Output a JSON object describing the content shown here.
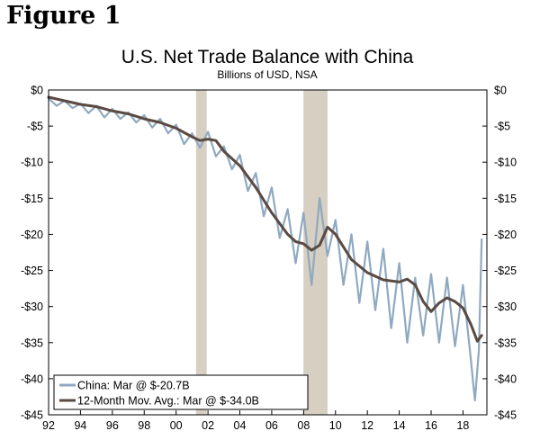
{
  "figure_label": "Figure 1",
  "chart_data": {
    "type": "line",
    "title": "U.S. Net Trade Balance with China",
    "subtitle": "Billions of USD, NSA",
    "xlabel": "",
    "ylabel": "",
    "xlim": [
      1992,
      2019.5
    ],
    "ylim": [
      -45,
      0
    ],
    "x_ticks": [
      1992,
      1994,
      1996,
      1998,
      2000,
      2002,
      2004,
      2006,
      2008,
      2010,
      2012,
      2014,
      2016,
      2018
    ],
    "x_tick_labels": [
      "92",
      "94",
      "96",
      "98",
      "00",
      "02",
      "04",
      "06",
      "08",
      "10",
      "12",
      "14",
      "16",
      "18"
    ],
    "y_ticks": [
      0,
      -5,
      -10,
      -15,
      -20,
      -25,
      -30,
      -35,
      -40,
      -45
    ],
    "y_tick_labels_left": [
      "$0",
      "-$5",
      "-$10",
      "-$15",
      "-$20",
      "-$25",
      "-$30",
      "-$35",
      "-$40",
      "-$45"
    ],
    "y_tick_labels_right": [
      "$0",
      "-$5",
      "-$10",
      "-$15",
      "-$20",
      "-$25",
      "-$30",
      "-$35",
      "-$40",
      "-$45"
    ],
    "recessions": [
      [
        2001.25,
        2001.92
      ],
      [
        2007.99,
        2009.5
      ]
    ],
    "legend_position": "bottom-left",
    "series": [
      {
        "name": "China: Mar @ $-20.7B",
        "color": "#8fa9c0",
        "x": [
          1992.0,
          1992.5,
          1993.0,
          1993.5,
          1994.0,
          1994.5,
          1995.0,
          1995.5,
          1996.0,
          1996.5,
          1997.0,
          1997.5,
          1998.0,
          1998.5,
          1999.0,
          1999.5,
          2000.0,
          2000.5,
          2001.0,
          2001.5,
          2002.0,
          2002.5,
          2003.0,
          2003.5,
          2004.0,
          2004.5,
          2005.0,
          2005.5,
          2006.0,
          2006.5,
          2007.0,
          2007.5,
          2008.0,
          2008.5,
          2009.0,
          2009.5,
          2010.0,
          2010.5,
          2011.0,
          2011.5,
          2012.0,
          2012.5,
          2013.0,
          2013.5,
          2014.0,
          2014.5,
          2015.0,
          2015.5,
          2016.0,
          2016.5,
          2017.0,
          2017.5,
          2018.0,
          2018.5,
          2018.75,
          2019.0,
          2019.17
        ],
        "values": [
          -1.2,
          -2.2,
          -1.5,
          -2.5,
          -1.9,
          -3.2,
          -2.2,
          -3.8,
          -2.6,
          -4.0,
          -3.1,
          -4.5,
          -3.5,
          -5.2,
          -4.0,
          -6.0,
          -4.8,
          -7.5,
          -6.0,
          -8.0,
          -5.8,
          -9.2,
          -7.8,
          -11.0,
          -9.0,
          -14.0,
          -11.5,
          -17.5,
          -13.5,
          -20.5,
          -16.5,
          -24.0,
          -17.0,
          -27.0,
          -15.0,
          -23.0,
          -18.0,
          -27.0,
          -20.0,
          -29.5,
          -21.0,
          -30.5,
          -22.0,
          -33.0,
          -24.0,
          -35.0,
          -26.0,
          -34.0,
          -25.5,
          -35.0,
          -26.0,
          -35.5,
          -27.0,
          -37.5,
          -43.0,
          -36.0,
          -20.7
        ]
      },
      {
        "name": "12-Month Mov. Avg.: Mar @ $-34.0B",
        "color": "#5a4a42",
        "x": [
          1992.0,
          1993.0,
          1994.0,
          1995.0,
          1996.0,
          1997.0,
          1998.0,
          1999.0,
          2000.0,
          2001.0,
          2001.5,
          2002.0,
          2002.5,
          2003.0,
          2004.0,
          2005.0,
          2006.0,
          2007.0,
          2007.5,
          2008.0,
          2008.5,
          2009.0,
          2009.5,
          2010.0,
          2011.0,
          2012.0,
          2013.0,
          2014.0,
          2014.5,
          2015.0,
          2015.5,
          2016.0,
          2016.5,
          2017.0,
          2017.5,
          2018.0,
          2018.5,
          2018.9,
          2019.17
        ],
        "values": [
          -1.0,
          -1.5,
          -2.0,
          -2.3,
          -2.9,
          -3.3,
          -4.0,
          -4.5,
          -5.3,
          -6.5,
          -7.0,
          -6.8,
          -7.0,
          -8.5,
          -10.5,
          -13.5,
          -17.0,
          -20.0,
          -21.0,
          -21.3,
          -22.2,
          -21.5,
          -19.0,
          -20.0,
          -23.5,
          -25.3,
          -26.3,
          -26.6,
          -26.2,
          -27.0,
          -29.3,
          -30.7,
          -29.5,
          -28.8,
          -29.3,
          -30.2,
          -32.5,
          -34.8,
          -34.0
        ]
      }
    ]
  }
}
